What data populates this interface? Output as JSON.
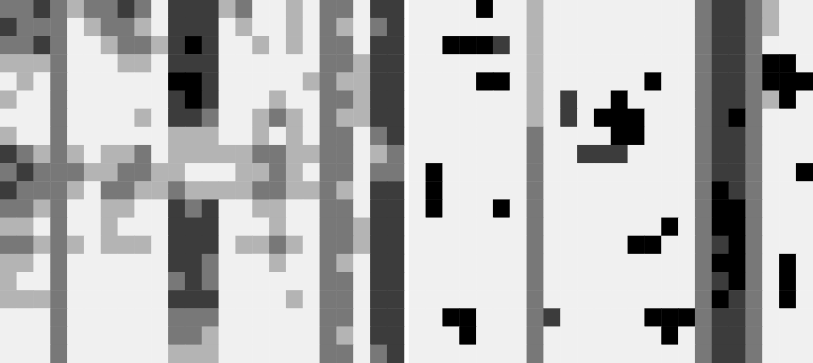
{
  "chart_data": [
    {
      "type": "heatmap",
      "tick_labels": false,
      "cells": [
        [
          2,
          2,
          1,
          2,
          3,
          2,
          2,
          1,
          2,
          4,
          1,
          1,
          1,
          3,
          2,
          4,
          4,
          3,
          4,
          2,
          2,
          4,
          1,
          1
        ],
        [
          1,
          2,
          2,
          2,
          4,
          3,
          2,
          2,
          3,
          4,
          1,
          1,
          1,
          4,
          3,
          4,
          4,
          3,
          4,
          2,
          3,
          4,
          2,
          1
        ],
        [
          2,
          2,
          1,
          2,
          4,
          4,
          3,
          2,
          2,
          3,
          1,
          0,
          1,
          4,
          4,
          3,
          4,
          3,
          4,
          2,
          2,
          4,
          1,
          1
        ],
        [
          3,
          3,
          3,
          2,
          4,
          4,
          4,
          3,
          3,
          4,
          1,
          1,
          1,
          4,
          4,
          4,
          4,
          4,
          4,
          2,
          2,
          3,
          1,
          1
        ],
        [
          4,
          3,
          4,
          2,
          4,
          4,
          4,
          4,
          4,
          4,
          0,
          0,
          1,
          4,
          4,
          4,
          4,
          4,
          3,
          2,
          3,
          3,
          1,
          1
        ],
        [
          3,
          4,
          4,
          2,
          4,
          4,
          4,
          4,
          4,
          4,
          1,
          0,
          1,
          4,
          4,
          4,
          3,
          4,
          4,
          2,
          2,
          3,
          1,
          1
        ],
        [
          4,
          4,
          4,
          2,
          4,
          4,
          4,
          4,
          3,
          4,
          1,
          1,
          2,
          4,
          4,
          3,
          2,
          3,
          4,
          2,
          3,
          3,
          1,
          1
        ],
        [
          3,
          4,
          4,
          2,
          4,
          4,
          4,
          4,
          4,
          4,
          3,
          3,
          3,
          4,
          4,
          3,
          4,
          3,
          4,
          2,
          2,
          4,
          2,
          1
        ],
        [
          1,
          2,
          3,
          2,
          3,
          4,
          3,
          3,
          2,
          4,
          3,
          3,
          3,
          3,
          3,
          2,
          2,
          3,
          3,
          2,
          2,
          4,
          3,
          2
        ],
        [
          2,
          1,
          2,
          2,
          2,
          3,
          3,
          2,
          2,
          3,
          3,
          4,
          4,
          4,
          3,
          3,
          2,
          3,
          4,
          2,
          2,
          4,
          2,
          2
        ],
        [
          1,
          2,
          2,
          2,
          3,
          4,
          2,
          2,
          3,
          3,
          2,
          3,
          3,
          3,
          3,
          2,
          2,
          3,
          3,
          2,
          3,
          4,
          1,
          1
        ],
        [
          2,
          2,
          3,
          2,
          4,
          4,
          3,
          3,
          4,
          4,
          1,
          2,
          1,
          4,
          4,
          3,
          3,
          4,
          4,
          2,
          2,
          4,
          1,
          1
        ],
        [
          3,
          3,
          4,
          2,
          4,
          4,
          3,
          4,
          4,
          4,
          1,
          1,
          1,
          4,
          4,
          4,
          3,
          4,
          4,
          2,
          2,
          3,
          1,
          1
        ],
        [
          2,
          2,
          3,
          2,
          3,
          4,
          3,
          3,
          3,
          4,
          1,
          1,
          1,
          4,
          3,
          3,
          2,
          3,
          4,
          2,
          2,
          3,
          1,
          1
        ],
        [
          3,
          3,
          4,
          2,
          4,
          4,
          4,
          4,
          4,
          4,
          1,
          1,
          2,
          4,
          4,
          4,
          3,
          4,
          4,
          2,
          3,
          4,
          1,
          1
        ],
        [
          3,
          4,
          4,
          2,
          4,
          4,
          4,
          4,
          4,
          4,
          2,
          1,
          2,
          4,
          4,
          4,
          4,
          4,
          4,
          2,
          2,
          4,
          1,
          1
        ],
        [
          3,
          3,
          3,
          2,
          4,
          4,
          4,
          4,
          4,
          4,
          1,
          1,
          1,
          4,
          4,
          4,
          4,
          3,
          4,
          2,
          2,
          4,
          1,
          1
        ],
        [
          4,
          4,
          4,
          2,
          4,
          4,
          4,
          4,
          4,
          4,
          2,
          2,
          2,
          4,
          4,
          4,
          4,
          4,
          4,
          2,
          2,
          4,
          1,
          1
        ],
        [
          4,
          4,
          4,
          2,
          4,
          4,
          4,
          4,
          4,
          4,
          2,
          2,
          3,
          4,
          4,
          4,
          4,
          4,
          4,
          2,
          3,
          4,
          1,
          1
        ],
        [
          4,
          4,
          4,
          2,
          4,
          4,
          4,
          4,
          4,
          4,
          3,
          3,
          3,
          4,
          4,
          4,
          4,
          4,
          4,
          2,
          2,
          4,
          2,
          1
        ]
      ]
    },
    {
      "type": "heatmap",
      "tick_labels": false,
      "cells": [
        [
          4,
          4,
          4,
          4,
          0,
          4,
          4,
          3,
          4,
          4,
          4,
          4,
          4,
          4,
          4,
          4,
          4,
          2,
          1,
          1,
          2,
          3,
          4,
          4
        ],
        [
          4,
          4,
          4,
          4,
          4,
          4,
          4,
          3,
          4,
          4,
          4,
          4,
          4,
          4,
          4,
          4,
          4,
          2,
          1,
          1,
          2,
          3,
          4,
          4
        ],
        [
          4,
          4,
          0,
          0,
          0,
          1,
          4,
          3,
          4,
          4,
          4,
          4,
          4,
          4,
          4,
          4,
          4,
          2,
          1,
          1,
          2,
          4,
          4,
          4
        ],
        [
          4,
          4,
          4,
          4,
          4,
          4,
          4,
          3,
          4,
          4,
          4,
          4,
          4,
          4,
          4,
          4,
          4,
          2,
          1,
          1,
          2,
          0,
          0,
          4
        ],
        [
          4,
          4,
          4,
          4,
          0,
          0,
          4,
          3,
          4,
          4,
          4,
          4,
          4,
          4,
          0,
          4,
          4,
          2,
          1,
          1,
          2,
          0,
          0,
          0
        ],
        [
          4,
          4,
          4,
          4,
          4,
          4,
          4,
          3,
          4,
          1,
          4,
          4,
          0,
          4,
          4,
          4,
          4,
          2,
          1,
          1,
          2,
          3,
          0,
          4
        ],
        [
          4,
          4,
          4,
          4,
          4,
          4,
          4,
          3,
          4,
          1,
          4,
          0,
          0,
          0,
          4,
          4,
          4,
          2,
          1,
          0,
          2,
          4,
          4,
          4
        ],
        [
          4,
          4,
          4,
          4,
          4,
          4,
          4,
          2,
          4,
          4,
          4,
          4,
          0,
          0,
          4,
          4,
          4,
          2,
          1,
          1,
          2,
          4,
          4,
          4
        ],
        [
          4,
          4,
          4,
          4,
          4,
          4,
          4,
          2,
          4,
          4,
          1,
          1,
          1,
          4,
          4,
          4,
          4,
          2,
          1,
          1,
          2,
          4,
          4,
          4
        ],
        [
          4,
          0,
          4,
          4,
          4,
          4,
          4,
          2,
          4,
          4,
          4,
          4,
          4,
          4,
          4,
          4,
          4,
          2,
          1,
          1,
          2,
          4,
          4,
          0
        ],
        [
          4,
          0,
          4,
          4,
          4,
          4,
          4,
          2,
          4,
          4,
          4,
          4,
          4,
          4,
          4,
          4,
          4,
          2,
          0,
          1,
          2,
          4,
          4,
          4
        ],
        [
          4,
          0,
          4,
          4,
          4,
          0,
          4,
          2,
          4,
          4,
          4,
          4,
          4,
          4,
          4,
          4,
          4,
          2,
          0,
          0,
          2,
          4,
          4,
          4
        ],
        [
          4,
          4,
          4,
          4,
          4,
          4,
          4,
          2,
          4,
          4,
          4,
          4,
          4,
          4,
          4,
          0,
          4,
          2,
          0,
          0,
          2,
          4,
          4,
          4
        ],
        [
          4,
          4,
          4,
          4,
          4,
          4,
          4,
          2,
          4,
          4,
          4,
          4,
          4,
          0,
          0,
          4,
          4,
          2,
          1,
          0,
          2,
          4,
          4,
          4
        ],
        [
          4,
          4,
          4,
          4,
          4,
          4,
          4,
          2,
          4,
          4,
          4,
          4,
          4,
          4,
          4,
          4,
          4,
          2,
          0,
          0,
          2,
          4,
          0,
          4
        ],
        [
          4,
          4,
          4,
          4,
          4,
          4,
          4,
          2,
          4,
          4,
          4,
          4,
          4,
          4,
          4,
          4,
          4,
          2,
          1,
          0,
          2,
          4,
          0,
          4
        ],
        [
          4,
          4,
          4,
          4,
          4,
          4,
          4,
          2,
          4,
          4,
          4,
          4,
          4,
          4,
          4,
          4,
          4,
          2,
          0,
          1,
          2,
          4,
          0,
          4
        ],
        [
          4,
          4,
          0,
          0,
          4,
          4,
          4,
          2,
          1,
          4,
          4,
          4,
          4,
          4,
          0,
          0,
          0,
          2,
          1,
          1,
          2,
          4,
          4,
          4
        ],
        [
          4,
          4,
          4,
          0,
          4,
          4,
          4,
          2,
          4,
          4,
          4,
          4,
          4,
          4,
          4,
          0,
          4,
          2,
          1,
          1,
          2,
          4,
          4,
          4
        ],
        [
          4,
          4,
          4,
          4,
          4,
          4,
          4,
          2,
          4,
          4,
          4,
          4,
          4,
          4,
          4,
          4,
          4,
          2,
          1,
          1,
          2,
          4,
          4,
          4
        ]
      ]
    }
  ]
}
